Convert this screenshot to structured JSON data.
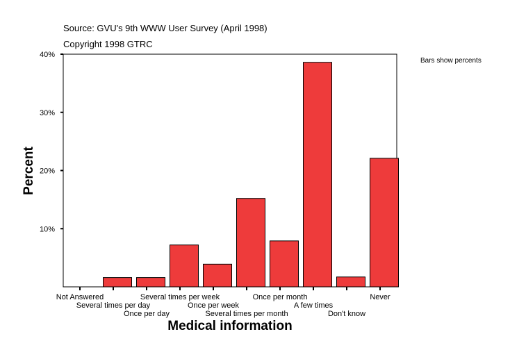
{
  "header": {
    "source": "Source: GVU's 9th WWW User Survey (April 1998)",
    "copyright": "Copyright 1998 GTRC",
    "note": "Bars show percents"
  },
  "chart_data": {
    "type": "bar",
    "title": "",
    "xlabel": "Medical information",
    "ylabel": "Percent",
    "ylim": [
      0,
      40
    ],
    "yticks": [
      10,
      20,
      30,
      40
    ],
    "ytick_labels": [
      "10%",
      "20%",
      "30%",
      "40%"
    ],
    "grid": false,
    "bar_color": "#EE3B3B",
    "categories": [
      "Not Answered",
      "Several times per day",
      "Once per day",
      "Several times per week",
      "Once per week",
      "Several times per month",
      "Once per month",
      "A few times",
      "Don't know",
      "Never"
    ],
    "values": [
      0,
      1.6,
      1.6,
      7.2,
      3.9,
      15.2,
      7.9,
      38.6,
      1.7,
      22.1
    ]
  }
}
